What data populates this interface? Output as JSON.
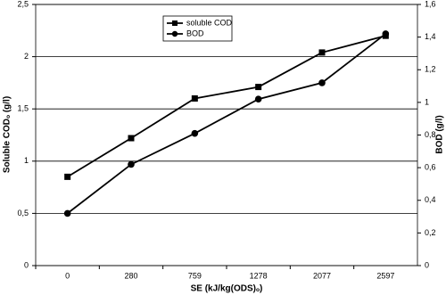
{
  "chart_data": {
    "type": "line",
    "x_label": "SE (kJ/kg(ODS)ₒ)",
    "y_label": "Soluble CODₒ (g/l)",
    "y2_label": "BOD (g/l)",
    "categories": [
      "0",
      "280",
      "759",
      "1278",
      "2077",
      "2597"
    ],
    "series": [
      {
        "name": "soluble COD",
        "color": "#000000",
        "marker": "square",
        "values": [
          0.85,
          1.22,
          1.6,
          1.71,
          2.04,
          2.2
        ]
      },
      {
        "name": "BOD",
        "color": "#000000",
        "marker": "circle",
        "axis": "y2",
        "values": [
          0.32,
          0.62,
          0.81,
          1.02,
          1.12,
          1.42
        ]
      }
    ],
    "ylim": [
      0,
      2.5
    ],
    "yticks": [
      0,
      {
        "value": 0.5,
        "label": "0,5"
      },
      1,
      {
        "value": 1.5,
        "label": "1,5"
      },
      2,
      {
        "value": 2.5,
        "label": "2,5"
      }
    ],
    "y2lim": [
      0,
      1.6
    ],
    "y2ticks": [
      0,
      {
        "value": 0.2,
        "label": "0,2"
      },
      {
        "value": 0.4,
        "label": "0,4"
      },
      {
        "value": 0.6,
        "label": "0,6"
      },
      {
        "value": 0.8,
        "label": "0,8"
      },
      1,
      {
        "value": 1.2,
        "label": "1,2"
      },
      {
        "value": 1.4,
        "label": "1,4"
      },
      {
        "value": 1.6,
        "label": "1,6"
      }
    ],
    "grid": true,
    "legend_position": "top"
  }
}
